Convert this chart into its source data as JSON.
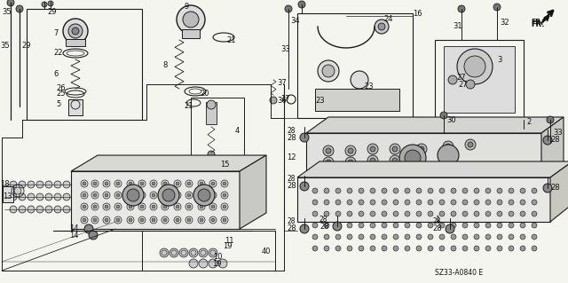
{
  "background_color": "#f5f5f0",
  "diagram_code": "SZ33-A0840 E",
  "line_color": "#1a1a1a",
  "text_color": "#111111",
  "font_size": 6.0,
  "figsize": [
    6.4,
    3.19
  ],
  "dpi": 100
}
